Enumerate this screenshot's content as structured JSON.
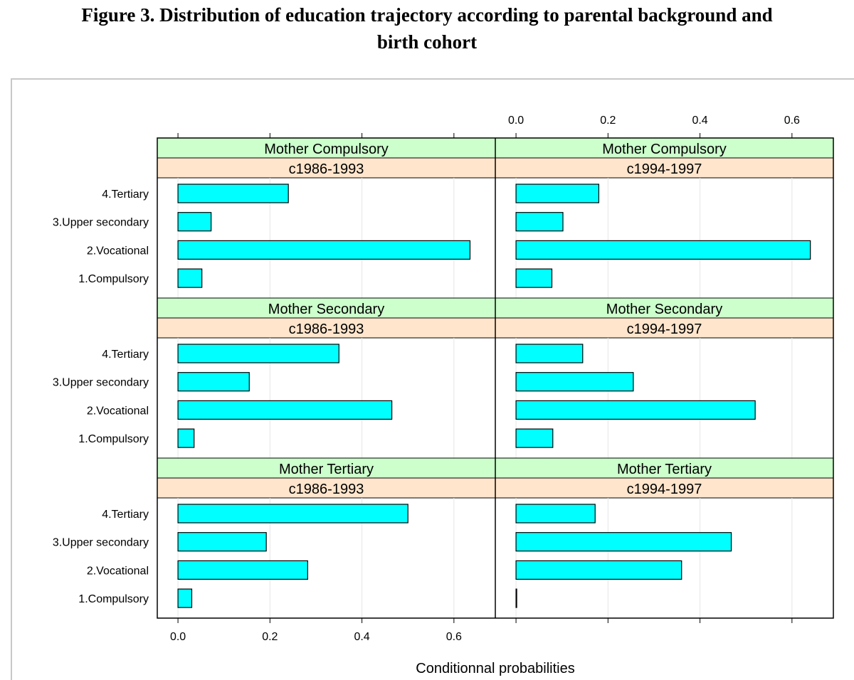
{
  "title_line1": "Figure 3. Distribution of education trajectory according to parental background and",
  "title_line2": "birth cohort",
  "colors": {
    "bar_fill": "#00ffff",
    "bar_stroke": "#000000",
    "strip_top": "#ccffcc",
    "strip_bottom": "#ffe5cc",
    "grid": "#e6e6e6"
  },
  "chart_data": {
    "type": "bar",
    "orientation": "horizontal",
    "xlabel": "Conditionnal probabilities",
    "xlim": [
      -0.045,
      0.69
    ],
    "xticks": [
      0.0,
      0.2,
      0.4,
      0.6
    ],
    "tick_labels": [
      "0.0",
      "0.2",
      "0.4",
      "0.6"
    ],
    "categories": [
      "4.Tertiary",
      "3.Upper secondary",
      "2.Vocational",
      "1.Compulsory"
    ],
    "panels": [
      {
        "strip_top": "Mother Compulsory",
        "strip_bottom": "c1986-1993",
        "values": [
          0.24,
          0.072,
          0.635,
          0.052
        ]
      },
      {
        "strip_top": "Mother Compulsory",
        "strip_bottom": "c1994-1997",
        "values": [
          0.18,
          0.102,
          0.64,
          0.078
        ]
      },
      {
        "strip_top": "Mother Secondary",
        "strip_bottom": "c1986-1993",
        "values": [
          0.35,
          0.155,
          0.465,
          0.035
        ]
      },
      {
        "strip_top": "Mother Secondary",
        "strip_bottom": "c1994-1997",
        "values": [
          0.145,
          0.255,
          0.52,
          0.08
        ]
      },
      {
        "strip_top": "Mother Tertiary",
        "strip_bottom": "c1986-1993",
        "values": [
          0.5,
          0.192,
          0.282,
          0.03
        ]
      },
      {
        "strip_top": "Mother Tertiary",
        "strip_bottom": "c1994-1997",
        "values": [
          0.172,
          0.468,
          0.36,
          0.0
        ]
      }
    ]
  }
}
